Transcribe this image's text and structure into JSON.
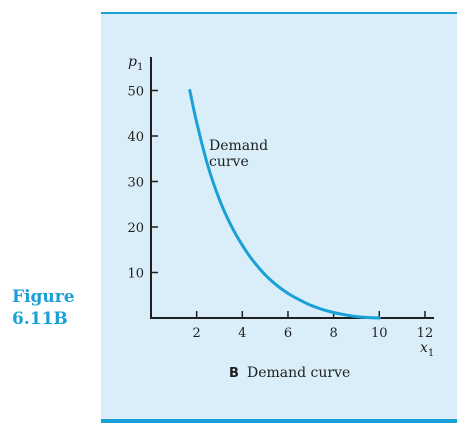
{
  "figure": {
    "label_line1": "Figure",
    "label_line2": "6.11B",
    "caption_letter": "B",
    "caption_text": "Demand curve"
  },
  "colors": {
    "accent": "#1aa0d8",
    "panel": "#d9eef8",
    "axis": "#1f1f1f"
  },
  "chart_data": {
    "type": "line",
    "title": "",
    "xlabel": "x1",
    "ylabel": "p1",
    "xlim": [
      0,
      12
    ],
    "ylim": [
      0,
      50
    ],
    "x_ticks": [
      2,
      4,
      6,
      8,
      10,
      12
    ],
    "y_ticks": [
      10,
      20,
      30,
      40,
      50
    ],
    "grid": false,
    "series": [
      {
        "name": "Demand curve",
        "x": [
          1.7,
          2.0,
          2.5,
          3.0,
          3.5,
          4.0,
          4.5,
          5.0,
          5.5,
          6.0,
          6.5,
          7.0,
          7.5,
          8.0,
          8.5,
          9.0,
          9.5,
          10.0
        ],
        "y": [
          50.0,
          43.0,
          33.3,
          26.0,
          20.4,
          16.0,
          12.4,
          9.5,
          7.2,
          5.4,
          4.0,
          2.8,
          1.9,
          1.2,
          0.7,
          0.3,
          0.1,
          0.0
        ]
      }
    ],
    "annotations": [
      {
        "text_line1": "Demand",
        "text_line2": "curve"
      }
    ]
  }
}
